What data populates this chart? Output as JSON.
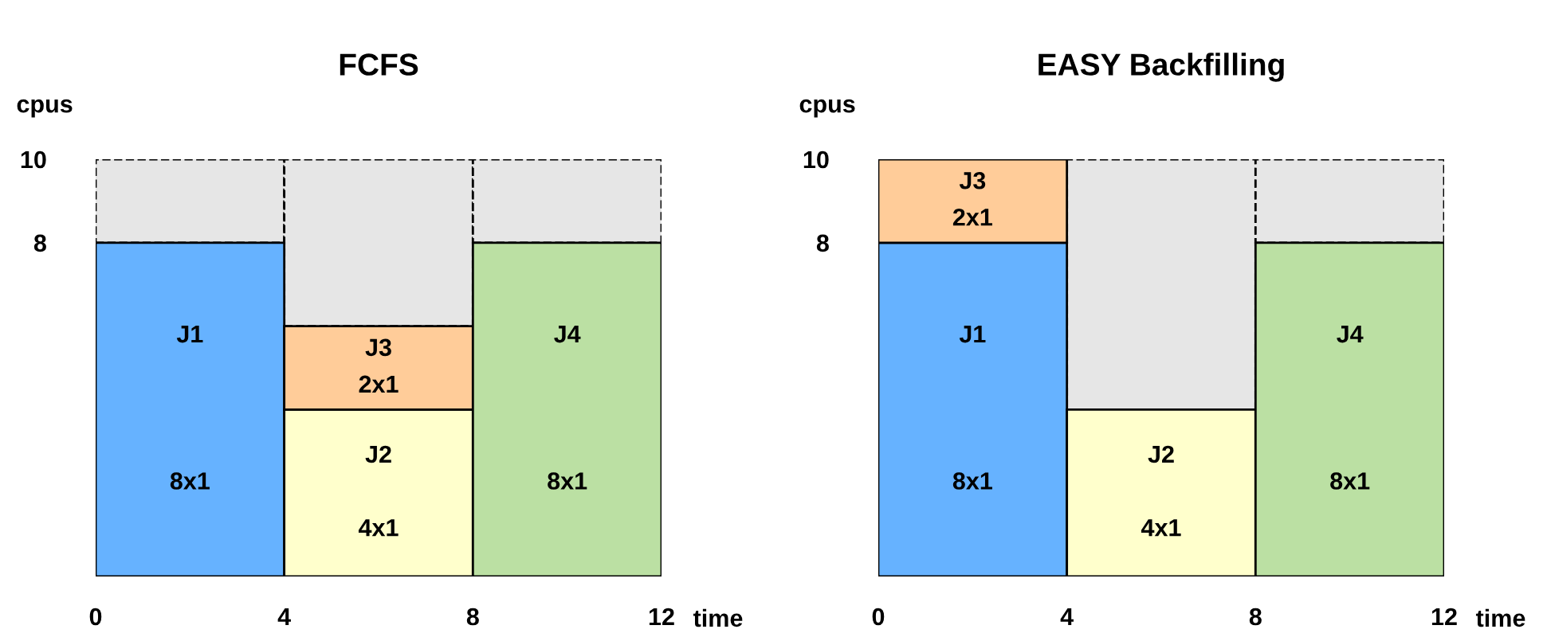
{
  "chart_data": [
    {
      "type": "bar",
      "title": "FCFS",
      "xlabel": "time",
      "ylabel": "cpus",
      "stacked": true,
      "x": [
        2,
        6,
        10
      ],
      "xlim": [
        0,
        12
      ],
      "xticks": [
        0,
        4,
        8,
        12
      ],
      "ylim": [
        0,
        10
      ],
      "yticks": [
        8,
        10
      ],
      "grid": false,
      "legend": false,
      "series": [
        {
          "name": "J1",
          "color": "#66b2ff",
          "values": [
            8,
            null,
            null
          ],
          "value_labels": [
            "8x1",
            null,
            null
          ]
        },
        {
          "name": "J2",
          "color": "#ffffcc",
          "values": [
            null,
            4,
            null
          ],
          "value_labels": [
            null,
            "4x1",
            null
          ]
        },
        {
          "name": "J3",
          "color": "#ffcc99",
          "values": [
            null,
            2,
            null
          ],
          "value_labels": [
            null,
            "2x1",
            null
          ]
        },
        {
          "name": "J4",
          "color": "#bbe0a3",
          "values": [
            null,
            null,
            8
          ],
          "value_labels": [
            null,
            null,
            "8x1"
          ]
        },
        {
          "color": "#e6e6e6",
          "values": [
            2,
            4,
            2
          ],
          "line_style": "dashed"
        }
      ]
    },
    {
      "type": "bar",
      "title": "EASY Backfilling",
      "xlabel": "time",
      "ylabel": "cpus",
      "stacked": true,
      "x": [
        2,
        6,
        10
      ],
      "xlim": [
        0,
        12
      ],
      "xticks": [
        0,
        4,
        8,
        12
      ],
      "ylim": [
        0,
        10
      ],
      "yticks": [
        8,
        10
      ],
      "grid": false,
      "legend": false,
      "series": [
        {
          "name": "J1",
          "color": "#66b2ff",
          "values": [
            8,
            null,
            null
          ],
          "value_labels": [
            "8x1",
            null,
            null
          ]
        },
        {
          "name": "J2",
          "color": "#ffffcc",
          "values": [
            null,
            4,
            null
          ],
          "value_labels": [
            null,
            "4x1",
            null
          ]
        },
        {
          "name": "J3",
          "color": "#ffcc99",
          "values": [
            2,
            null,
            null
          ],
          "value_labels": [
            "2x1",
            null,
            null
          ]
        },
        {
          "name": "J4",
          "color": "#bbe0a3",
          "values": [
            null,
            null,
            8
          ],
          "value_labels": [
            null,
            null,
            "8x1"
          ]
        },
        {
          "color": "#e6e6e6",
          "values": [
            null,
            6,
            2
          ],
          "line_style": "dashed"
        }
      ]
    }
  ]
}
